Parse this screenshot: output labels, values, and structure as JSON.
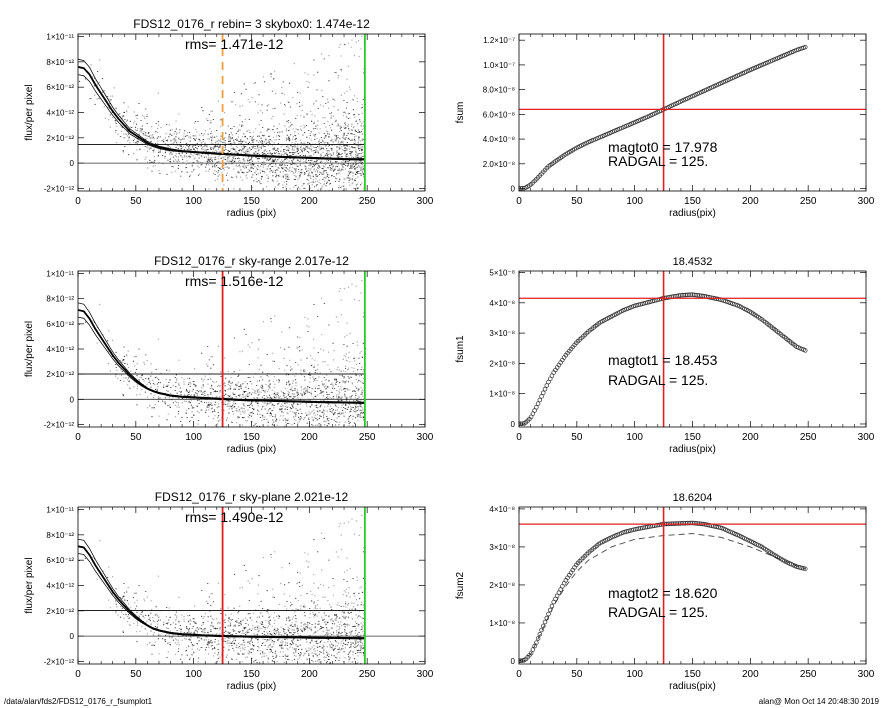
{
  "footer": {
    "left": "/data/alan/fds2/FDS12_0176_r_fsumplot1",
    "right": "alan@  Mon Oct 14 20:48:30 2019"
  },
  "chart_data": [
    {
      "type": "scatter",
      "title": "FDS12_0176_r rebin= 3    skybox0:  1.474e-12",
      "annotation": "rms= 1.471e-12",
      "xlabel": "radius (pix)",
      "ylabel": "flux/per pixel",
      "xlim": [
        0,
        300
      ],
      "ylim": [
        -2.2e-12,
        1.02e-11
      ],
      "xticks": [
        0,
        50,
        100,
        150,
        200,
        250,
        300
      ],
      "xtick_labels": [
        "0",
        "50",
        "100",
        "150",
        "200",
        "250",
        "300"
      ],
      "yticks": [
        -2e-12,
        0,
        2e-12,
        4e-12,
        6e-12,
        8e-12,
        1e-11
      ],
      "ytick_labels": [
        "-2×10⁻¹²",
        "0",
        "2×10⁻¹²",
        "4×10⁻¹²",
        "6×10⁻¹²",
        "8×10⁻¹²",
        "1×10⁻¹¹"
      ],
      "sky_level": 1.474e-12,
      "vline_radgal": 125,
      "vline_radgal_color": "#f0a040",
      "vline_radgal_style": "dashed",
      "vline_edge": 248,
      "vline_edge_color": "#22cc22",
      "profile": {
        "x": [
          0,
          5,
          10,
          15,
          20,
          25,
          30,
          35,
          40,
          45,
          50,
          55,
          60,
          65,
          70,
          75,
          80,
          90,
          100,
          110,
          120,
          130,
          140,
          150,
          160,
          170,
          180,
          190,
          200,
          210,
          220,
          230,
          240,
          248
        ],
        "y": [
          7.6e-12,
          7.5e-12,
          7e-12,
          6.2e-12,
          5.5e-12,
          4.8e-12,
          4.1e-12,
          3.5e-12,
          3e-12,
          2.5e-12,
          2.2e-12,
          1.9e-12,
          1.6e-12,
          1.4e-12,
          1.25e-12,
          1.15e-12,
          1.05e-12,
          9.5e-13,
          8.8e-13,
          8.2e-13,
          7.5e-13,
          7e-13,
          6.5e-13,
          6e-13,
          5.5e-13,
          5.2e-13,
          4.8e-13,
          4.5e-13,
          4.2e-13,
          3.8e-13,
          3.5e-13,
          3.2e-13,
          3e-13,
          3e-13
        ]
      }
    },
    {
      "type": "line",
      "title": "",
      "xlabel": "radius(pix)",
      "ylabel": "fsum",
      "xlim": [
        0,
        300
      ],
      "ylim": [
        -2e-09,
        1.25e-07
      ],
      "xticks": [
        0,
        50,
        100,
        150,
        200,
        250,
        300
      ],
      "xtick_labels": [
        "0",
        "50",
        "100",
        "150",
        "200",
        "250",
        "300"
      ],
      "yticks": [
        0,
        2e-08,
        4e-08,
        6e-08,
        8e-08,
        1e-07,
        1.2e-07
      ],
      "ytick_labels": [
        "0",
        "2.0×10⁻⁸",
        "4.0×10⁻⁸",
        "6.0×10⁻⁸",
        "8.0×10⁻⁸",
        "1.0×10⁻⁷",
        "1.2×10⁻⁷"
      ],
      "hline": 6.4e-08,
      "vline": 125,
      "mag_text": "magtot0 = 17.978",
      "radgal_text": "RADGAL =    125.",
      "curve": {
        "x": [
          0,
          5,
          10,
          15,
          20,
          25,
          30,
          40,
          50,
          60,
          70,
          80,
          90,
          100,
          110,
          125,
          140,
          160,
          180,
          200,
          220,
          240,
          248
        ],
        "y": [
          0,
          3e-10,
          3e-09,
          7.5e-09,
          1.25e-08,
          1.75e-08,
          2.1e-08,
          2.75e-08,
          3.3e-08,
          3.75e-08,
          4.15e-08,
          4.55e-08,
          4.95e-08,
          5.35e-08,
          5.75e-08,
          6.4e-08,
          7.05e-08,
          7.9e-08,
          8.75e-08,
          9.6e-08,
          1.04e-07,
          1.12e-07,
          1.145e-07
        ]
      }
    },
    {
      "type": "scatter",
      "title": "FDS12_0176_r sky-range  2.017e-12",
      "annotation": "rms= 1.516e-12",
      "xlabel": "radius (pix)",
      "ylabel": "flux/per pixel",
      "xlim": [
        0,
        300
      ],
      "ylim": [
        -2.2e-12,
        1.02e-11
      ],
      "xticks": [
        0,
        50,
        100,
        150,
        200,
        250,
        300
      ],
      "xtick_labels": [
        "0",
        "50",
        "100",
        "150",
        "200",
        "250",
        "300"
      ],
      "yticks": [
        -2e-12,
        0,
        2e-12,
        4e-12,
        6e-12,
        8e-12,
        1e-11
      ],
      "ytick_labels": [
        "-2×10⁻¹²",
        "0",
        "2×10⁻¹²",
        "4×10⁻¹²",
        "6×10⁻¹²",
        "8×10⁻¹²",
        "1×10⁻¹¹"
      ],
      "sky_level": 2.017e-12,
      "vline_radgal": 125,
      "vline_radgal_color": "#e02020",
      "vline_radgal_style": "solid",
      "vline_edge": 248,
      "vline_edge_color": "#22cc22",
      "profile": {
        "x": [
          0,
          5,
          10,
          15,
          20,
          25,
          30,
          35,
          40,
          45,
          50,
          55,
          60,
          65,
          70,
          75,
          80,
          90,
          100,
          110,
          120,
          130,
          140,
          150,
          160,
          170,
          180,
          190,
          200,
          210,
          220,
          230,
          240,
          248
        ],
        "y": [
          7.1e-12,
          7e-12,
          6.4e-12,
          5.6e-12,
          4.9e-12,
          4.2e-12,
          3.5e-12,
          2.9e-12,
          2.4e-12,
          1.9e-12,
          1.5e-12,
          1.15e-12,
          8.5e-13,
          6.5e-13,
          5e-13,
          4e-13,
          3e-13,
          2e-13,
          1.5e-13,
          1e-13,
          5e-14,
          0.0,
          -5e-14,
          -8e-14,
          -1e-13,
          -1.2e-13,
          -1.5e-13,
          -1.7e-13,
          -2e-13,
          -2.2e-13,
          -2.4e-13,
          -2.5e-13,
          -2.7e-13,
          -2.8e-13
        ]
      }
    },
    {
      "type": "line",
      "title": "18.4532",
      "xlabel": "radius(pix)",
      "ylabel": "fsum1",
      "xlim": [
        0,
        300
      ],
      "ylim": [
        -1e-09,
        5.05e-08
      ],
      "xticks": [
        0,
        50,
        100,
        150,
        200,
        250,
        300
      ],
      "xtick_labels": [
        "0",
        "50",
        "100",
        "150",
        "200",
        "250",
        "300"
      ],
      "yticks": [
        0,
        1e-08,
        2e-08,
        3e-08,
        4e-08,
        5e-08
      ],
      "ytick_labels": [
        "0",
        "1×10⁻⁸",
        "2×10⁻⁸",
        "3×10⁻⁸",
        "4×10⁻⁸",
        "5×10⁻⁸"
      ],
      "hline": 4.15e-08,
      "vline": 125,
      "mag_text": "magtot1 =  18.453",
      "radgal_text": "RADGAL =    125.",
      "curve": {
        "x": [
          0,
          5,
          10,
          15,
          20,
          25,
          30,
          40,
          50,
          60,
          70,
          80,
          90,
          100,
          110,
          125,
          140,
          150,
          160,
          175,
          190,
          200,
          210,
          220,
          230,
          240,
          248
        ],
        "y": [
          0,
          2e-10,
          2e-09,
          5.5e-09,
          9.5e-09,
          1.35e-08,
          1.7e-08,
          2.25e-08,
          2.7e-08,
          3.05e-08,
          3.35e-08,
          3.55e-08,
          3.75e-08,
          3.9e-08,
          4e-08,
          4.15e-08,
          4.25e-08,
          4.27e-08,
          4.22e-08,
          4.1e-08,
          3.9e-08,
          3.7e-08,
          3.45e-08,
          3.15e-08,
          2.85e-08,
          2.55e-08,
          2.42e-08
        ]
      }
    },
    {
      "type": "scatter",
      "title": "FDS12_0176_r sky-plane  2.021e-12",
      "annotation": "rms= 1.490e-12",
      "xlabel": "radius (pix)",
      "ylabel": "flux/per pixel",
      "xlim": [
        0,
        300
      ],
      "ylim": [
        -2.2e-12,
        1.02e-11
      ],
      "xticks": [
        0,
        50,
        100,
        150,
        200,
        250,
        300
      ],
      "xtick_labels": [
        "0",
        "50",
        "100",
        "150",
        "200",
        "250",
        "300"
      ],
      "yticks": [
        -2e-12,
        0,
        2e-12,
        4e-12,
        6e-12,
        8e-12,
        1e-11
      ],
      "ytick_labels": [
        "-2×10⁻¹²",
        "0",
        "2×10⁻¹²",
        "4×10⁻¹²",
        "6×10⁻¹²",
        "8×10⁻¹²",
        "1×10⁻¹¹"
      ],
      "sky_level": 2.021e-12,
      "vline_radgal": 125,
      "vline_radgal_color": "#e02020",
      "vline_radgal_style": "solid",
      "vline_edge": 248,
      "vline_edge_color": "#22cc22",
      "profile": {
        "x": [
          0,
          5,
          10,
          15,
          20,
          25,
          30,
          35,
          40,
          45,
          50,
          55,
          60,
          65,
          70,
          75,
          80,
          90,
          100,
          110,
          120,
          130,
          140,
          150,
          160,
          170,
          180,
          190,
          200,
          210,
          220,
          230,
          240,
          248
        ],
        "y": [
          7.1e-12,
          7e-12,
          6.4e-12,
          5.6e-12,
          4.9e-12,
          4.2e-12,
          3.5e-12,
          2.9e-12,
          2.4e-12,
          1.9e-12,
          1.5e-12,
          1.15e-12,
          8.5e-13,
          6e-13,
          4.5e-13,
          3.5e-13,
          2.5e-13,
          1.5e-13,
          1e-13,
          5e-14,
          2e-14,
          0.0,
          -2e-14,
          -4e-14,
          -6e-14,
          -7e-14,
          -8e-14,
          -1e-13,
          -1.2e-13,
          -1.3e-13,
          -1.4e-13,
          -1.5e-13,
          -1.6e-13,
          -1.7e-13
        ]
      }
    },
    {
      "type": "line",
      "title": "18.6204",
      "xlabel": "radius(pix)",
      "ylabel": "fsum2",
      "xlim": [
        0,
        300
      ],
      "ylim": [
        -8e-10,
        4.05e-08
      ],
      "xticks": [
        0,
        50,
        100,
        150,
        200,
        250,
        300
      ],
      "xtick_labels": [
        "0",
        "50",
        "100",
        "150",
        "200",
        "250",
        "300"
      ],
      "yticks": [
        0,
        1e-08,
        2e-08,
        3e-08,
        4e-08
      ],
      "ytick_labels": [
        "0",
        "1×10⁻⁸",
        "2×10⁻⁸",
        "3×10⁻⁸",
        "4×10⁻⁸"
      ],
      "hline": 3.6e-08,
      "vline": 125,
      "mag_text": "magtot2 =  18.620",
      "radgal_text": "RADGAL =    125.",
      "curve": {
        "x": [
          0,
          5,
          10,
          15,
          20,
          25,
          30,
          40,
          50,
          60,
          70,
          80,
          90,
          100,
          110,
          125,
          140,
          150,
          160,
          175,
          190,
          200,
          210,
          220,
          230,
          240,
          248
        ],
        "y": [
          0,
          2e-10,
          1.8e-09,
          4.8e-09,
          8.5e-09,
          1.2e-08,
          1.55e-08,
          2.1e-08,
          2.55e-08,
          2.85e-08,
          3.1e-08,
          3.25e-08,
          3.38e-08,
          3.46e-08,
          3.52e-08,
          3.6e-08,
          3.62e-08,
          3.63e-08,
          3.6e-08,
          3.5e-08,
          3.3e-08,
          3.15e-08,
          3e-08,
          2.8e-08,
          2.62e-08,
          2.48e-08,
          2.42e-08
        ]
      },
      "curve2": {
        "x": [
          0,
          10,
          20,
          30,
          40,
          50,
          60,
          80,
          100,
          125,
          150,
          175,
          200,
          220,
          240,
          248
        ],
        "y": [
          0,
          1.7e-09,
          8e-09,
          1.45e-08,
          1.95e-08,
          2.35e-08,
          2.65e-08,
          3e-08,
          3.2e-08,
          3.3e-08,
          3.35e-08,
          3.25e-08,
          3e-08,
          2.75e-08,
          2.5e-08,
          2.42e-08
        ]
      }
    }
  ]
}
